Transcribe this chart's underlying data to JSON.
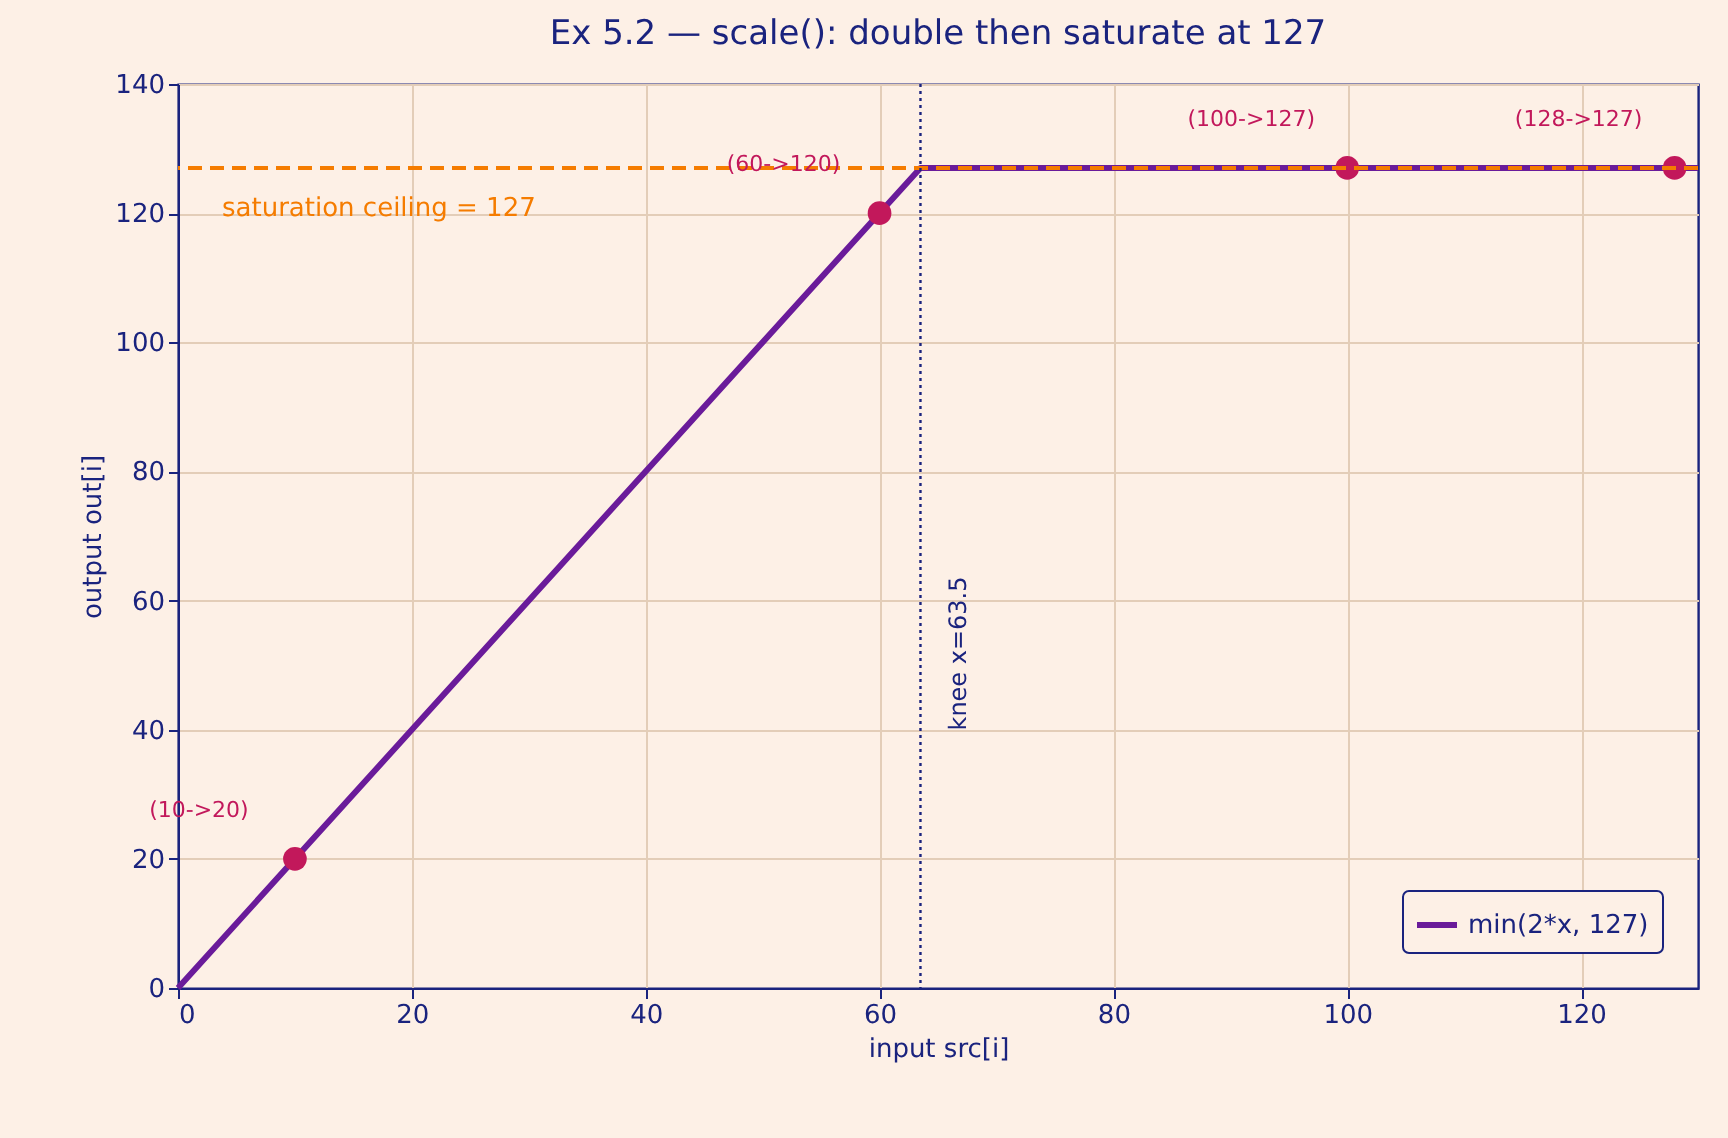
{
  "chart_data": {
    "type": "line",
    "title": "Ex 5.2 — scale(): double then saturate at 127",
    "xlabel": "input src[i]",
    "ylabel": "output out[i]",
    "series": [
      {
        "name": "min(2*x, 127)",
        "color": "#6a1b9a",
        "x": [
          0,
          63.5,
          130
        ],
        "values": [
          0,
          127,
          127
        ],
        "marker": "none",
        "line_style": "solid"
      },
      {
        "type": "scatter",
        "color": "#c2185b",
        "x": [
          10,
          60,
          100,
          128
        ],
        "values": [
          20,
          120,
          127,
          127
        ],
        "marker": "circle"
      }
    ],
    "xlim": [
      0,
      130
    ],
    "xticks": [
      0,
      20,
      40,
      60,
      80,
      100,
      120
    ],
    "ylim": [
      0,
      140
    ],
    "yticks": [
      0,
      20,
      40,
      60,
      80,
      100,
      120,
      140
    ],
    "ref_lines": [
      {
        "axis": "y",
        "value": 127,
        "label": "saturation ceiling = 127",
        "color": "#f57c00",
        "line_style": "dashed"
      },
      {
        "axis": "x",
        "value": 63.5,
        "label": "knee x=63.5",
        "color": "#1a237e",
        "line_style": "dotted"
      }
    ],
    "annotations": [
      {
        "text": "(10->20)",
        "x": 10,
        "y": 20
      },
      {
        "text": "(60->120)",
        "x": 60,
        "y": 120
      },
      {
        "text": "(100->127)",
        "x": 100,
        "y": 127
      },
      {
        "text": "(128->127)",
        "x": 128,
        "y": 127
      }
    ],
    "grid": true,
    "legend": "bottom right"
  }
}
